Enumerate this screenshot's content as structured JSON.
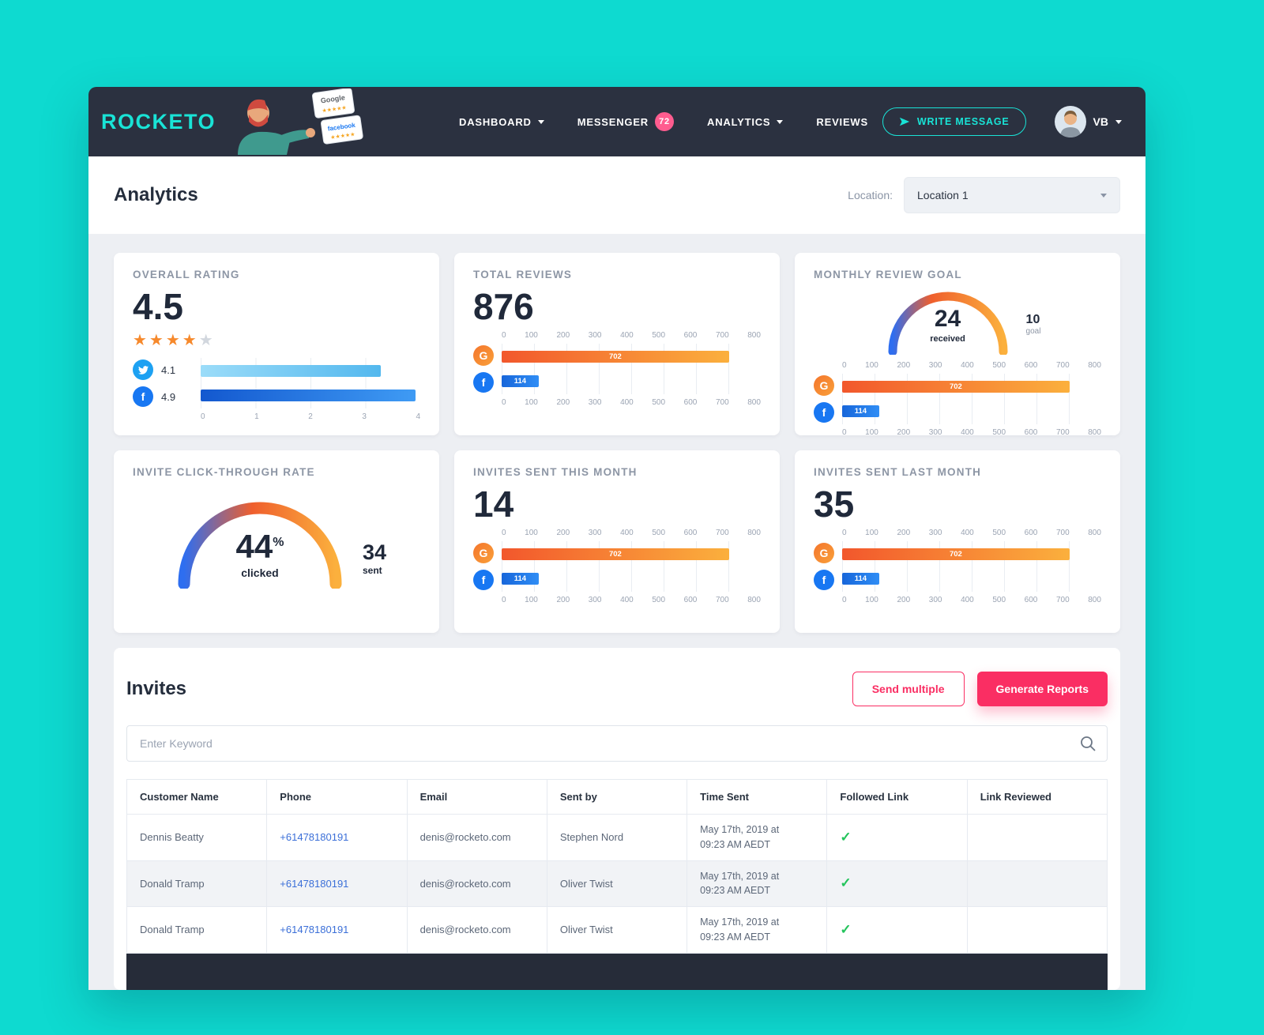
{
  "navbar": {
    "logo": "ROCKETO",
    "menu": [
      {
        "label": "DASHBOARD"
      },
      {
        "label": "MESSENGER",
        "badge": "72"
      },
      {
        "label": "ANALYTICS"
      },
      {
        "label": "REVIEWS"
      }
    ],
    "write_message": "WRITE MESSAGE",
    "user_initials": "VB",
    "illustration": {
      "card1": "Google",
      "card2": "facebook"
    }
  },
  "header": {
    "title": "Analytics",
    "location_label": "Location:",
    "location_value": "Location 1"
  },
  "cards": {
    "overall_rating": {
      "title": "OVERALL RATING",
      "value": "4.5",
      "stars_filled": "★★★★",
      "stars_empty": "★",
      "twitter": {
        "value": 4.1,
        "max": 5
      },
      "facebook": {
        "value": 4.9,
        "max": 5
      },
      "twitter_label": "4.1",
      "facebook_label": "4.9",
      "axis": [
        "0",
        "1",
        "2",
        "3",
        "4"
      ]
    },
    "total_reviews": {
      "title": "TOTAL REVIEWS",
      "value": "876",
      "google": {
        "value": 702,
        "max": 800
      },
      "facebook": {
        "value": 114,
        "max": 800
      },
      "axis": [
        "0",
        "100",
        "200",
        "300",
        "400",
        "500",
        "600",
        "700",
        "800"
      ]
    },
    "monthly_goal": {
      "title": "MONTHLY REVIEW GOAL",
      "received": "24",
      "received_label": "received",
      "goal": "10",
      "goal_label": "goal",
      "google": {
        "value": 702,
        "max": 800
      },
      "facebook": {
        "value": 114,
        "max": 800
      },
      "axis": [
        "0",
        "100",
        "200",
        "300",
        "400",
        "500",
        "600",
        "700",
        "800"
      ]
    },
    "ctr": {
      "title": "INVITE CLICK-THROUGH RATE",
      "value": "44",
      "unit": "%",
      "value_label": "clicked",
      "side_value": "34",
      "side_label": "sent"
    },
    "sent_this_month": {
      "title": "INVITES SENT THIS MONTH",
      "value": "14",
      "google": {
        "value": 702,
        "max": 800
      },
      "facebook": {
        "value": 114,
        "max": 800
      },
      "axis": [
        "0",
        "100",
        "200",
        "300",
        "400",
        "500",
        "600",
        "700",
        "800"
      ]
    },
    "sent_last_month": {
      "title": "INVITES SENT LAST MONTH",
      "value": "35",
      "google": {
        "value": 702,
        "max": 800
      },
      "facebook": {
        "value": 114,
        "max": 800
      },
      "axis": [
        "0",
        "100",
        "200",
        "300",
        "400",
        "500",
        "600",
        "700",
        "800"
      ]
    }
  },
  "invites": {
    "title": "Invites",
    "send_multiple": "Send multiple",
    "generate_reports": "Generate Reports",
    "search_placeholder": "Enter Keyword",
    "table": {
      "headers": [
        "Customer Name",
        "Phone",
        "Email",
        "Sent by",
        "Time Sent",
        "Followed Link",
        "Link Reviewed"
      ],
      "rows": [
        {
          "name": "Dennis Beatty",
          "phone": "+61478180191",
          "email": "denis@rocketo.com",
          "sent_by": "Stephen Nord",
          "time1": "May 17th, 2019 at",
          "time2": "09:23 AM AEDT",
          "followed": "✓",
          "reviewed": ""
        },
        {
          "name": "Donald Tramp",
          "phone": "+61478180191",
          "email": "denis@rocketo.com",
          "sent_by": "Oliver Twist",
          "time1": "May 17th, 2019 at",
          "time2": "09:23 AM AEDT",
          "followed": "✓",
          "reviewed": ""
        },
        {
          "name": "Donald Tramp",
          "phone": "+61478180191",
          "email": "denis@rocketo.com",
          "sent_by": "Oliver Twist",
          "time1": "May 17th, 2019 at",
          "time2": "09:23 AM AEDT",
          "followed": "✓",
          "reviewed": ""
        }
      ]
    }
  }
}
